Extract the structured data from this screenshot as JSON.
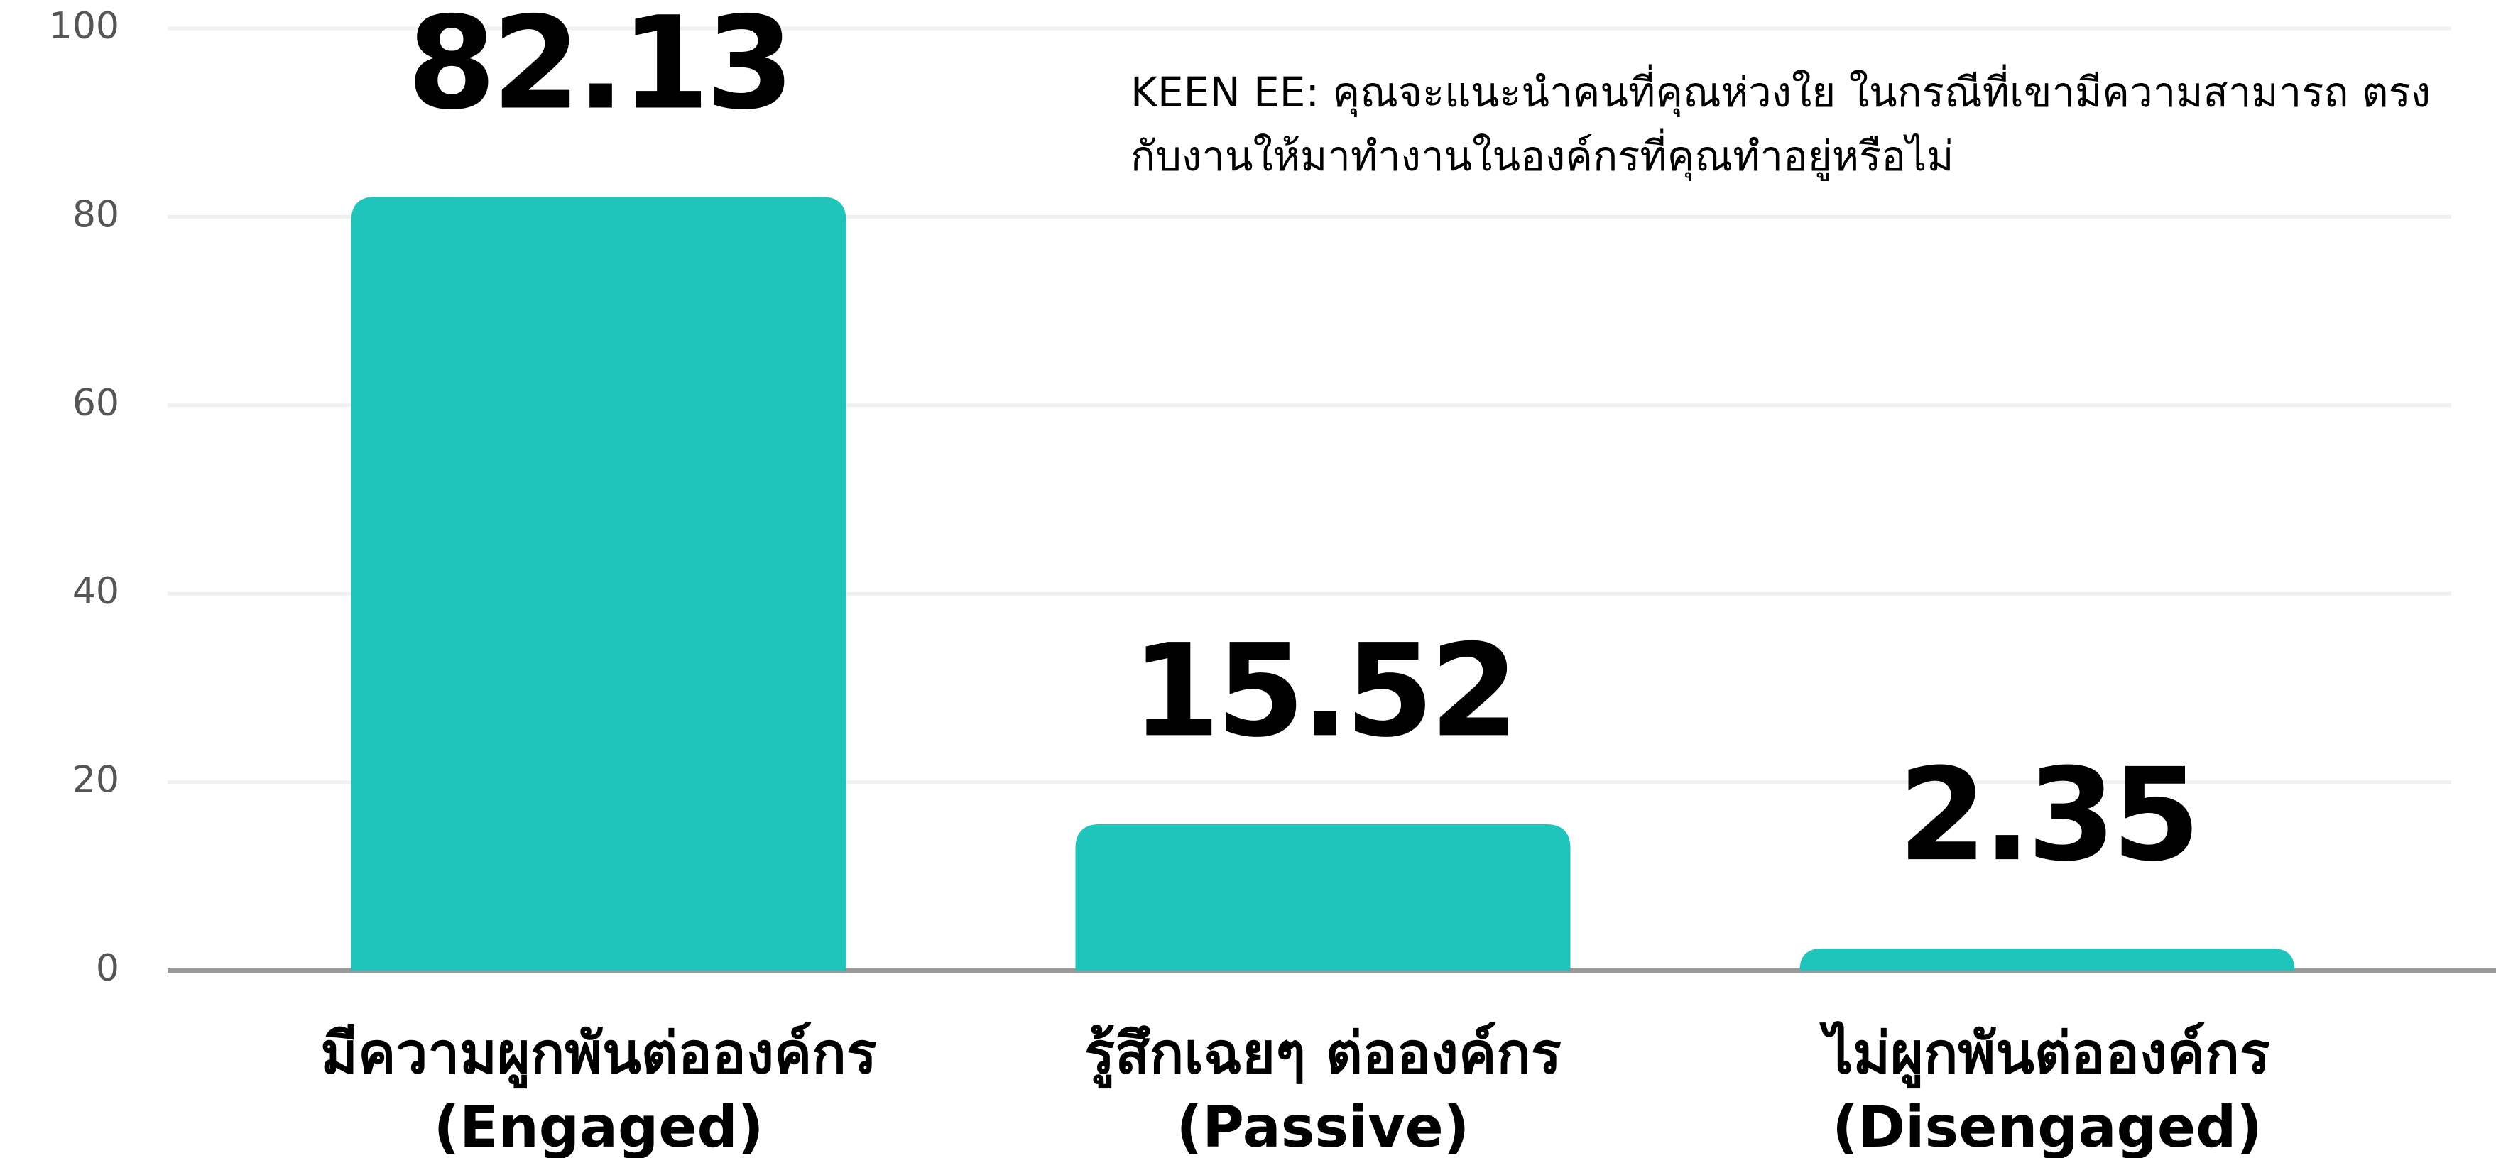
{
  "chart_data": {
    "type": "bar",
    "title": "KEEN EE: คุณจะแนะนำคนที่คุณห่วงใย ในกรณีที่เขามีความสามารถ ตรงกับงานให้มาทำงานในองค์กรที่คุณทำอยู่หรือไม่",
    "categories": [
      "มีความผูกพันต่อองค์กร (Engaged)",
      "รู้สึกเฉยๆ ต่อองค์กร (Passive)",
      "ไม่ผูกพันต่อองค์กร (Disengaged)"
    ],
    "values": [
      82.13,
      15.52,
      2.35
    ],
    "color": "#1fc4bb",
    "ylim": [
      0,
      100
    ],
    "yticks": [
      0,
      20,
      40,
      60,
      80,
      100
    ],
    "grid": true
  }
}
